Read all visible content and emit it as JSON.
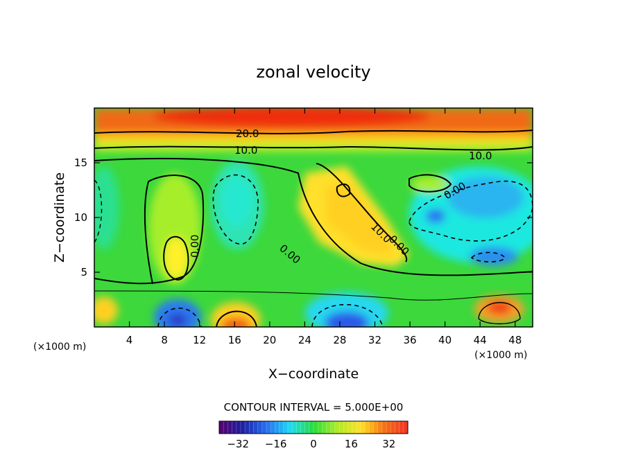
{
  "chart_data": {
    "type": "heatmap",
    "title": "zonal velocity",
    "xlabel": "X−coordinate",
    "ylabel": "Z−coordinate",
    "x_unit_left": "(×1000 m)",
    "x_unit_right": "(×1000 m)",
    "xlim": [
      0,
      50
    ],
    "ylim": [
      0,
      20
    ],
    "x_ticks": [
      4,
      8,
      12,
      16,
      20,
      24,
      28,
      32,
      36,
      40,
      44,
      48
    ],
    "y_ticks": [
      5,
      10,
      15
    ],
    "contour_interval_text": "CONTOUR INTERVAL = 5.000E+00",
    "contour_labels": [
      "20.0",
      "10.0",
      "10.0",
      "0.00",
      "0.00",
      "0.00",
      "10.0",
      "0.00"
    ],
    "colorbar": {
      "range": [
        -40,
        40
      ],
      "ticks": [
        -32,
        -16,
        0,
        16,
        32
      ],
      "tick_labels": [
        "−32",
        "−16",
        "0",
        "16",
        "32"
      ]
    },
    "colors": {
      "very_negative": "#2a2aa8",
      "negative": "#00bfff",
      "near_zero": "#35d835",
      "positive": "#ffe02a",
      "very_positive": "#f04010"
    }
  }
}
